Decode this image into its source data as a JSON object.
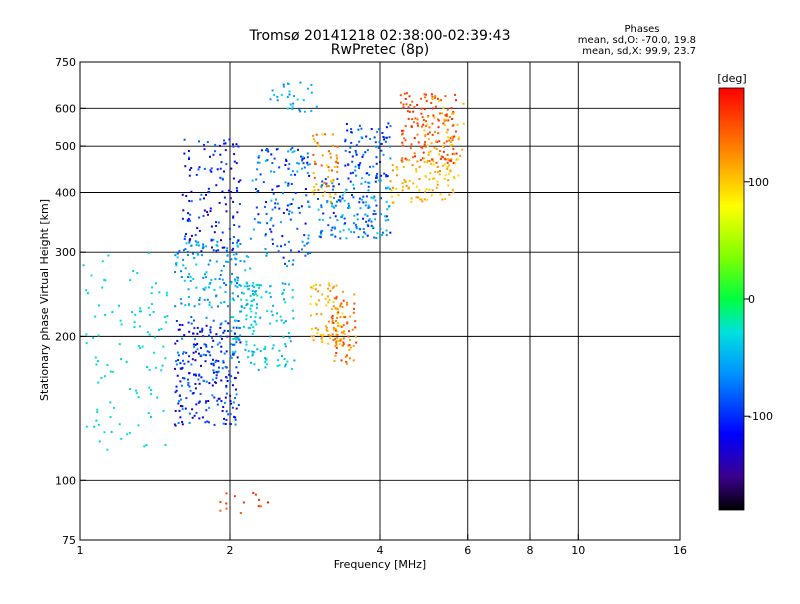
{
  "chart_data": {
    "type": "scatter",
    "title": "Tromsø 20141218 02:38:00-02:39:43",
    "subtitle": "RwPretec (8p)",
    "xlabel": "Frequency [MHz]",
    "ylabel": "Stationary phase Virtual Height [km]",
    "x_scale": "log",
    "y_scale": "log",
    "xlim": [
      1,
      16
    ],
    "ylim": [
      75,
      750
    ],
    "x_ticks": [
      1,
      2,
      4,
      6,
      8,
      10,
      16
    ],
    "x_gridlines": [
      2,
      4,
      6,
      8,
      10
    ],
    "y_ticks": [
      75,
      100,
      200,
      300,
      400,
      500,
      600,
      750
    ],
    "y_gridlines": [
      100,
      200,
      300,
      400,
      500,
      600
    ],
    "grid": true,
    "stats": {
      "header": "Phases",
      "line_o": "mean, sd,O: -70.0, 19.8",
      "line_x": "mean, sd,X:  99.9, 23.7"
    },
    "colorbar": {
      "label": "[deg]",
      "ticks": [
        100,
        0,
        -100
      ],
      "range": [
        -180,
        180
      ],
      "colormap": "rainbow"
    },
    "clusters": [
      {
        "x": [
          0.98,
          1.5
        ],
        "y": [
          115,
          300
        ],
        "phase": [
          -40,
          -20
        ],
        "n": 110
      },
      {
        "x": [
          1.55,
          2.1
        ],
        "y": [
          130,
          220
        ],
        "phase": [
          -140,
          -60
        ],
        "n": 260
      },
      {
        "x": [
          1.55,
          2.2
        ],
        "y": [
          230,
          320
        ],
        "phase": [
          -80,
          -30
        ],
        "n": 140
      },
      {
        "x": [
          1.6,
          2.1
        ],
        "y": [
          300,
          520
        ],
        "phase": [
          -140,
          -70
        ],
        "n": 130
      },
      {
        "x": [
          2.0,
          2.3
        ],
        "y": [
          180,
          260
        ],
        "phase": [
          -60,
          -20
        ],
        "n": 70
      },
      {
        "x": [
          2.2,
          2.7
        ],
        "y": [
          170,
          260
        ],
        "phase": [
          -60,
          -20
        ],
        "n": 80
      },
      {
        "x": [
          2.2,
          2.9
        ],
        "y": [
          280,
          500
        ],
        "phase": [
          -120,
          -40
        ],
        "n": 150
      },
      {
        "x": [
          2.4,
          3.0
        ],
        "y": [
          590,
          680
        ],
        "phase": [
          -70,
          -30
        ],
        "n": 30
      },
      {
        "x": [
          2.9,
          3.4
        ],
        "y": [
          190,
          260
        ],
        "phase": [
          90,
          130
        ],
        "n": 80
      },
      {
        "x": [
          3.2,
          3.6
        ],
        "y": [
          175,
          245
        ],
        "phase": [
          110,
          160
        ],
        "n": 70
      },
      {
        "x": [
          2.9,
          3.3
        ],
        "y": [
          380,
          530
        ],
        "phase": [
          90,
          150
        ],
        "n": 60
      },
      {
        "x": [
          3.0,
          4.2
        ],
        "y": [
          320,
          430
        ],
        "phase": [
          -110,
          -30
        ],
        "n": 160
      },
      {
        "x": [
          3.4,
          4.2
        ],
        "y": [
          430,
          560
        ],
        "phase": [
          -120,
          -60
        ],
        "n": 80
      },
      {
        "x": [
          4.2,
          5.7
        ],
        "y": [
          380,
          470
        ],
        "phase": [
          90,
          130
        ],
        "n": 80
      },
      {
        "x": [
          4.4,
          5.7
        ],
        "y": [
          460,
          650
        ],
        "phase": [
          130,
          170
        ],
        "n": 140
      },
      {
        "x": [
          4.9,
          5.9
        ],
        "y": [
          420,
          640
        ],
        "phase": [
          90,
          120
        ],
        "n": 60
      },
      {
        "x": [
          1.9,
          2.4
        ],
        "y": [
          85,
          95
        ],
        "phase": [
          140,
          170
        ],
        "n": 14
      }
    ]
  }
}
